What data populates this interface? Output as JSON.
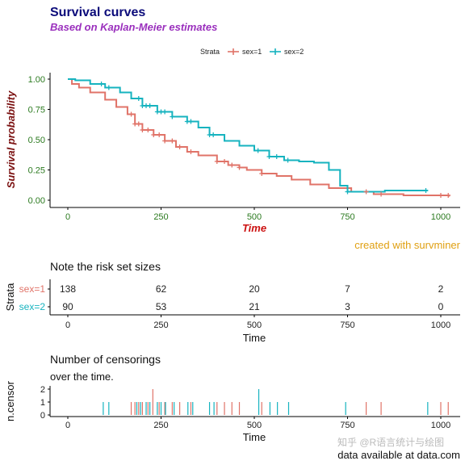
{
  "header": {
    "title": "Survival curves",
    "subtitle": "Based on Kaplan-Meier estimates"
  },
  "legend": {
    "title": "Strata",
    "items": [
      "sex=1",
      "sex=2"
    ]
  },
  "colors": {
    "sex1": "#e07368",
    "sex2": "#16b3bf"
  },
  "caption": "created with survminer",
  "risk_panel": {
    "title": "Note the risk set sizes",
    "ylabel": "Strata",
    "xlabel": "Time"
  },
  "censor_panel": {
    "title_line1": "Number of censorings",
    "title_line2": "over the time.",
    "ylabel": "n.censor",
    "xlabel": "Time"
  },
  "footer": "data available at data.com",
  "watermark": "知乎 @R语言统计与绘图",
  "chart_data": [
    {
      "type": "line",
      "title": "Survival curves",
      "subtitle": "Based on Kaplan-Meier estimates",
      "xlabel": "Time",
      "ylabel": "Survival probability",
      "xlim": [
        0,
        1022
      ],
      "ylim": [
        0,
        1
      ],
      "xticks": [
        0,
        250,
        500,
        750,
        1000
      ],
      "yticks": [
        "0.00",
        "0.25",
        "0.50",
        "0.75",
        "1.00"
      ],
      "legend_position": "top",
      "series": [
        {
          "name": "sex=1",
          "x": [
            0,
            11,
            30,
            60,
            100,
            130,
            160,
            180,
            200,
            230,
            260,
            290,
            320,
            350,
            400,
            430,
            460,
            480,
            520,
            560,
            600,
            650,
            700,
            760,
            820,
            900,
            1022
          ],
          "y": [
            1.0,
            0.96,
            0.93,
            0.89,
            0.83,
            0.77,
            0.71,
            0.63,
            0.58,
            0.54,
            0.49,
            0.44,
            0.4,
            0.37,
            0.32,
            0.29,
            0.27,
            0.25,
            0.22,
            0.2,
            0.17,
            0.13,
            0.1,
            0.07,
            0.05,
            0.04,
            0.03
          ],
          "censor_x": [
            170,
            180,
            190,
            200,
            215,
            230,
            245,
            260,
            280,
            300,
            330,
            400,
            420,
            440,
            460,
            520,
            800,
            840,
            1000,
            1020
          ]
        },
        {
          "name": "sex=2",
          "x": [
            0,
            20,
            60,
            100,
            140,
            170,
            200,
            240,
            280,
            320,
            350,
            380,
            420,
            460,
            500,
            540,
            580,
            620,
            660,
            700,
            730,
            750,
            800,
            850,
            965
          ],
          "y": [
            1.0,
            0.99,
            0.96,
            0.93,
            0.89,
            0.84,
            0.78,
            0.73,
            0.69,
            0.65,
            0.6,
            0.54,
            0.49,
            0.45,
            0.41,
            0.36,
            0.33,
            0.32,
            0.31,
            0.25,
            0.12,
            0.07,
            0.07,
            0.08,
            0.08
          ],
          "censor_x": [
            90,
            110,
            190,
            200,
            210,
            220,
            240,
            250,
            260,
            280,
            320,
            330,
            380,
            390,
            510,
            540,
            560,
            590,
            750,
            960
          ]
        }
      ]
    },
    {
      "type": "table",
      "title": "Note the risk set sizes",
      "xlabel": "Time",
      "ylabel": "Strata",
      "x": [
        0,
        250,
        500,
        750,
        1000
      ],
      "series": [
        {
          "name": "sex=1",
          "values": [
            138,
            62,
            20,
            7,
            2
          ]
        },
        {
          "name": "sex=2",
          "values": [
            90,
            53,
            21,
            3,
            0
          ]
        }
      ]
    },
    {
      "type": "bar",
      "title": "Number of censorings over the time.",
      "xlabel": "Time",
      "ylabel": "n.censor",
      "ylim": [
        0,
        2
      ],
      "yticks": [
        "0",
        "1",
        "2"
      ],
      "series": [
        {
          "name": "sex=1",
          "x": [
            170,
            180,
            190,
            200,
            215,
            228,
            245,
            260,
            280,
            300,
            330,
            400,
            420,
            440,
            460,
            520,
            800,
            840,
            1000,
            1020
          ],
          "values": [
            1,
            1,
            1,
            1,
            1,
            2,
            1,
            1,
            1,
            1,
            1,
            1,
            1,
            1,
            1,
            1,
            1,
            1,
            1,
            1
          ]
        },
        {
          "name": "sex=2",
          "x": [
            95,
            110,
            185,
            195,
            210,
            220,
            240,
            250,
            262,
            285,
            322,
            335,
            380,
            392,
            512,
            542,
            562,
            592,
            745,
            965
          ],
          "values": [
            1,
            1,
            1,
            1,
            1,
            1,
            1,
            1,
            1,
            1,
            1,
            1,
            1,
            1,
            2,
            1,
            1,
            1,
            1,
            1
          ]
        }
      ]
    }
  ]
}
